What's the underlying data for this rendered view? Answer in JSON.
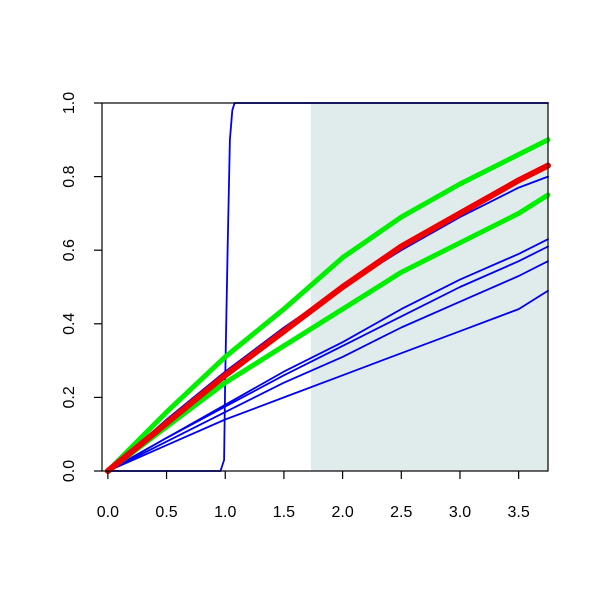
{
  "chart_data": {
    "type": "line",
    "title": "",
    "xlabel": "",
    "ylabel": "",
    "xlim": [
      -0.05,
      3.75
    ],
    "ylim": [
      0,
      1
    ],
    "x_ticks": [
      "0.0",
      "0.5",
      "1.0",
      "1.5",
      "2.0",
      "2.5",
      "3.0",
      "3.5"
    ],
    "y_ticks": [
      "0.0",
      "0.2",
      "0.4",
      "0.6",
      "0.8",
      "1.0"
    ],
    "grid": false,
    "legend": "none",
    "shaded_region": {
      "x": [
        1.73,
        3.75
      ],
      "y": [
        0,
        1
      ],
      "color": "#e0ecec"
    },
    "series": [
      {
        "color": "#0000ee",
        "emphasis": "thin",
        "x": [
          0,
          0.96,
          0.99,
          1.0,
          1.02,
          1.04,
          1.06,
          1.08,
          3.75
        ],
        "y": [
          0,
          0,
          0.03,
          0.25,
          0.6,
          0.9,
          0.98,
          1.0,
          1.0
        ]
      },
      {
        "color": "#0000ee",
        "emphasis": "thin",
        "x": [
          0,
          0.5,
          1.0,
          1.5,
          2.0,
          2.5,
          3.0,
          3.5,
          3.75
        ],
        "y": [
          0,
          0.14,
          0.27,
          0.39,
          0.5,
          0.6,
          0.69,
          0.77,
          0.8
        ]
      },
      {
        "color": "#0000ee",
        "emphasis": "thin",
        "x": [
          0,
          0.5,
          1.0,
          1.5,
          2.0,
          2.5,
          3.0,
          3.5,
          3.75
        ],
        "y": [
          0,
          0.09,
          0.18,
          0.27,
          0.35,
          0.44,
          0.52,
          0.59,
          0.63
        ]
      },
      {
        "color": "#0000ee",
        "emphasis": "thin",
        "x": [
          0,
          0.5,
          1.0,
          1.5,
          2.0,
          2.5,
          3.0,
          3.5,
          3.75
        ],
        "y": [
          0,
          0.09,
          0.175,
          0.26,
          0.34,
          0.42,
          0.5,
          0.57,
          0.61
        ]
      },
      {
        "color": "#0000ee",
        "emphasis": "thin",
        "x": [
          0,
          0.5,
          1.0,
          1.5,
          2.0,
          2.5,
          3.0,
          3.5,
          3.75
        ],
        "y": [
          0,
          0.08,
          0.16,
          0.24,
          0.31,
          0.39,
          0.46,
          0.53,
          0.57
        ]
      },
      {
        "color": "#0000ee",
        "emphasis": "thin",
        "x": [
          0,
          0.5,
          1.0,
          1.5,
          2.0,
          2.5,
          3.0,
          3.5,
          3.75
        ],
        "y": [
          0,
          0.07,
          0.14,
          0.2,
          0.26,
          0.32,
          0.38,
          0.44,
          0.49
        ]
      },
      {
        "color": "#00ee00",
        "emphasis": "thick",
        "x": [
          0,
          0.5,
          1.0,
          1.5,
          2.0,
          2.5,
          3.0,
          3.5,
          3.75
        ],
        "y": [
          0,
          0.12,
          0.24,
          0.34,
          0.44,
          0.54,
          0.62,
          0.7,
          0.75
        ]
      },
      {
        "color": "#00ee00",
        "emphasis": "thick",
        "x": [
          0,
          0.5,
          1.0,
          1.5,
          2.0,
          2.5,
          3.0,
          3.5,
          3.75
        ],
        "y": [
          0,
          0.16,
          0.31,
          0.44,
          0.58,
          0.69,
          0.78,
          0.86,
          0.9
        ]
      },
      {
        "color": "#ee0000",
        "emphasis": "thickest",
        "x": [
          0,
          0.5,
          1.0,
          1.5,
          2.0,
          2.5,
          3.0,
          3.5,
          3.75
        ],
        "y": [
          0,
          0.13,
          0.26,
          0.38,
          0.5,
          0.61,
          0.7,
          0.79,
          0.83
        ]
      }
    ]
  }
}
